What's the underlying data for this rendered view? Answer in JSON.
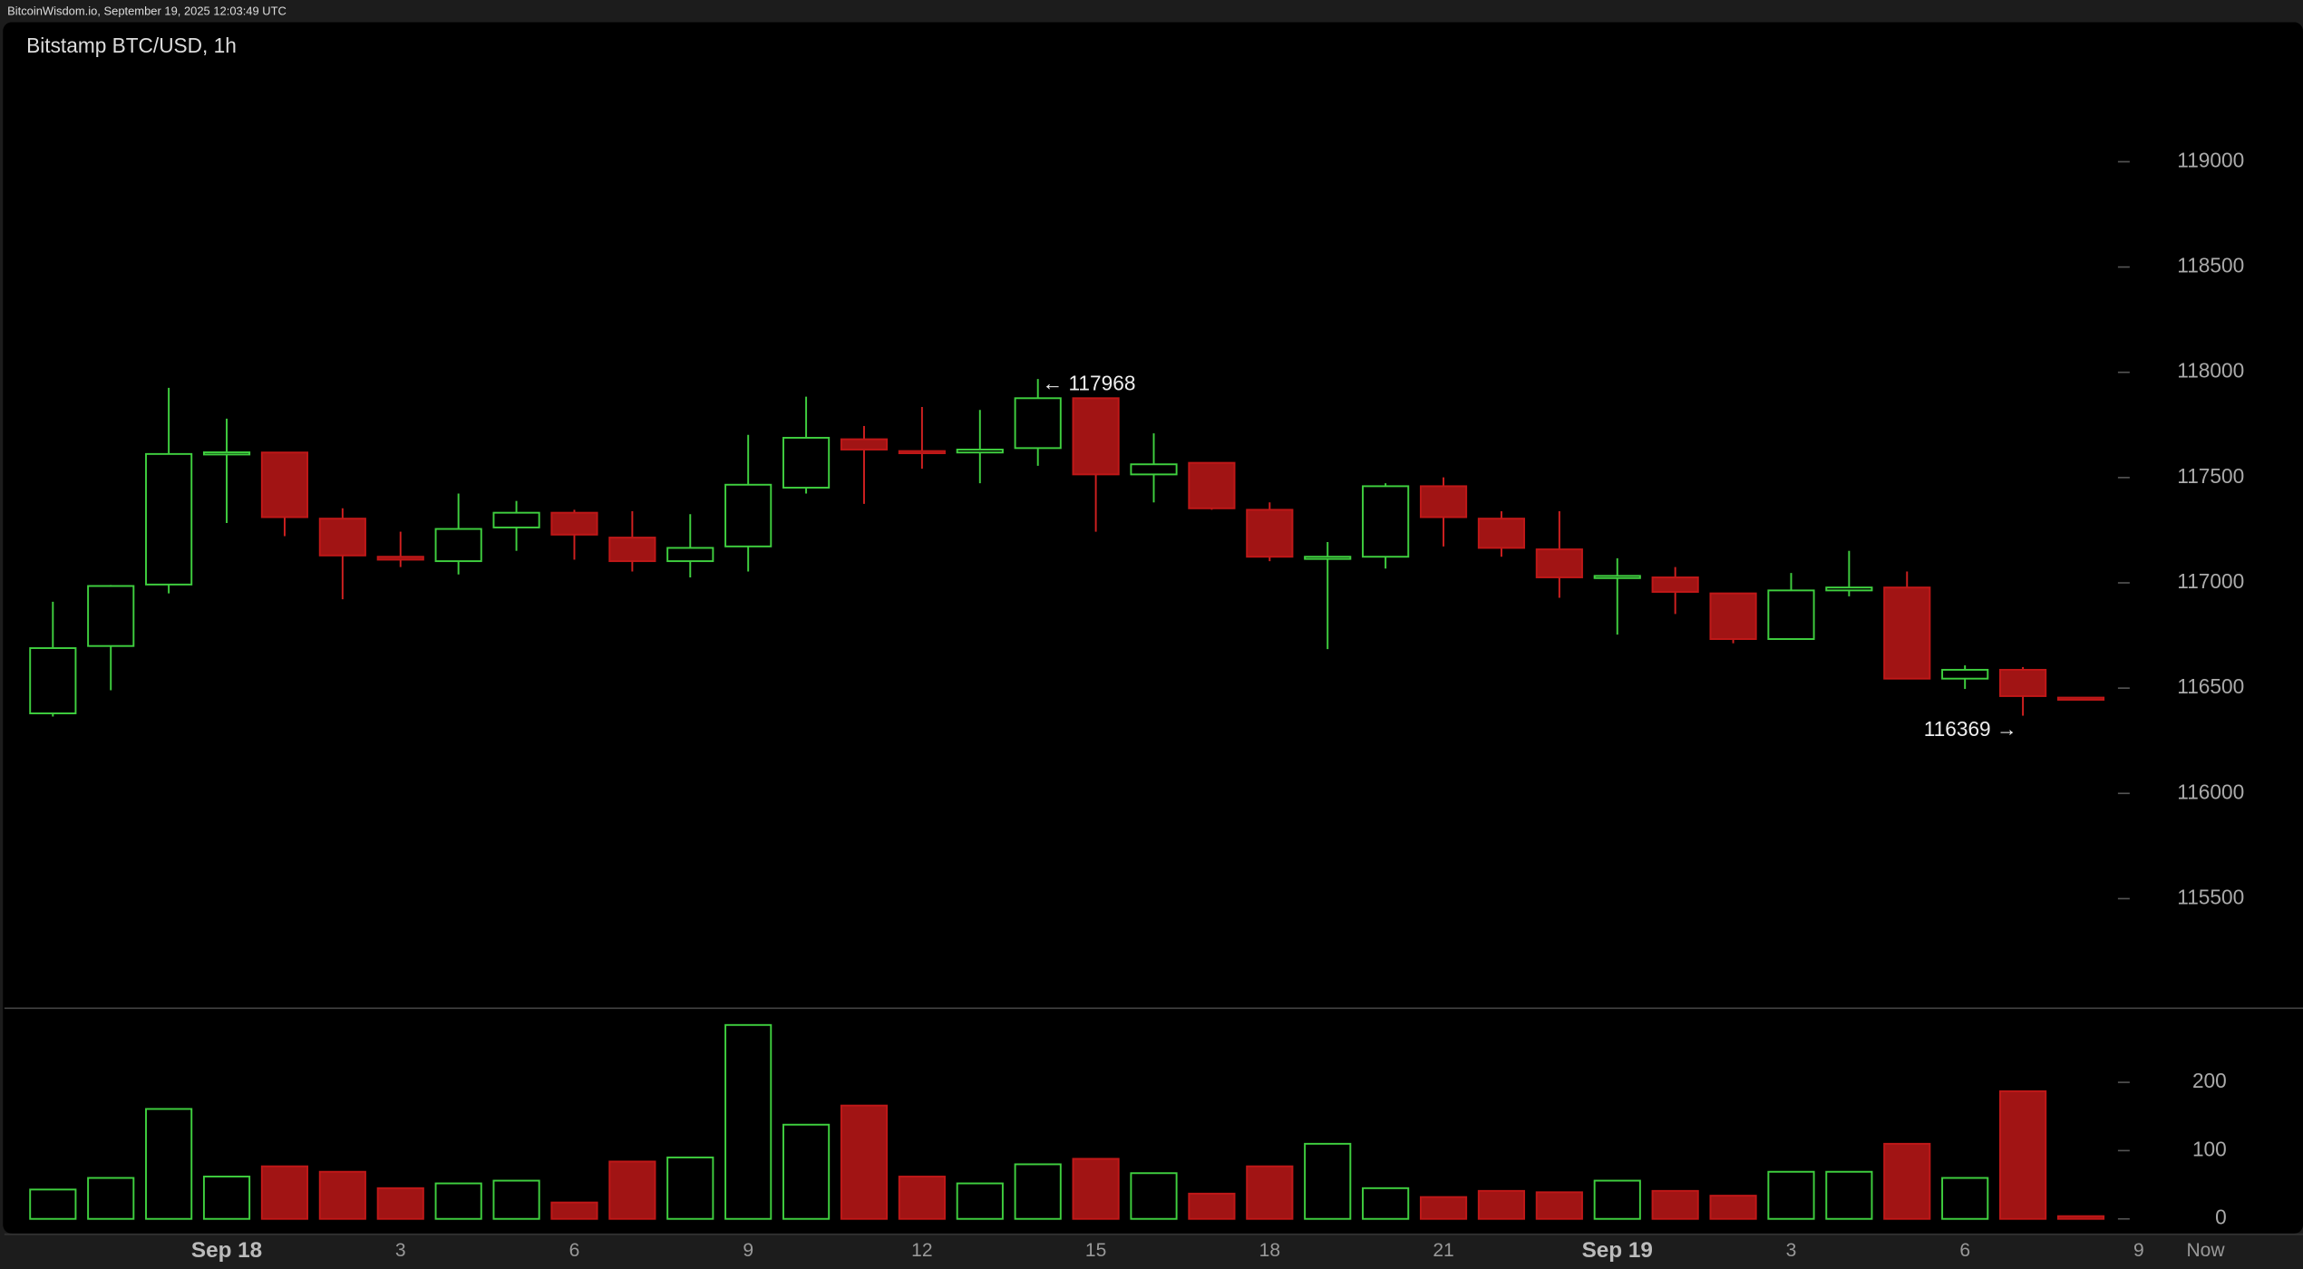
{
  "chart_data": {
    "type": "candlestick",
    "header": "BitcoinWisdom.io, September 19, 2025 12:03:49 UTC",
    "title": "Bitstamp BTC/USD, 1h",
    "categories": [
      null,
      null,
      null,
      "Sep 18",
      null,
      null,
      "3",
      null,
      null,
      "6",
      null,
      null,
      "9",
      null,
      null,
      "12",
      null,
      null,
      "15",
      null,
      null,
      "18",
      null,
      null,
      "21",
      null,
      null,
      "Sep 19",
      null,
      null,
      "3",
      null,
      null,
      "6",
      null,
      null
    ],
    "x_extra_labels": [
      "9",
      "Now"
    ],
    "open": [
      116380,
      116700,
      116992,
      117612,
      117619,
      117305,
      117124,
      117103,
      117263,
      117333,
      117215,
      117103,
      117173,
      117452,
      117682,
      117626,
      117619,
      117640,
      117877,
      117515,
      117570,
      117347,
      117117,
      117124,
      117459,
      117305,
      117159,
      117026,
      117026,
      116950,
      116733,
      116964,
      116978,
      116545,
      116587,
      116455
    ],
    "high": [
      116910,
      116990,
      117926,
      117780,
      117620,
      117354,
      117243,
      117424,
      117389,
      117347,
      117340,
      117326,
      117703,
      117884,
      117745,
      117835,
      117821,
      117968,
      117877,
      117710,
      117570,
      117382,
      117194,
      117473,
      117501,
      117340,
      117340,
      117117,
      117075,
      116950,
      117047,
      117152,
      117054,
      116608,
      116600,
      116455
    ],
    "low": [
      116365,
      116490,
      116950,
      117284,
      117222,
      116922,
      117075,
      117040,
      117152,
      117110,
      117054,
      117026,
      117054,
      117424,
      117375,
      117542,
      117473,
      117556,
      117243,
      117382,
      117347,
      117103,
      116685,
      117068,
      117173,
      117124,
      116929,
      116754,
      116852,
      116713,
      116733,
      116936,
      116545,
      116496,
      116369,
      116441
    ],
    "close": [
      116690,
      116985,
      117612,
      117620,
      117312,
      117130,
      117110,
      117256,
      117333,
      117229,
      117103,
      117166,
      117466,
      117689,
      117633,
      117619,
      117633,
      117877,
      117515,
      117563,
      117354,
      117124,
      117124,
      117459,
      117312,
      117166,
      117026,
      117033,
      116957,
      116733,
      116964,
      116978,
      116545,
      116587,
      116462,
      116448
    ],
    "volume": [
      43,
      60,
      161,
      62,
      77,
      69,
      45,
      52,
      56,
      24,
      84,
      90,
      284,
      138,
      166,
      62,
      52,
      80,
      88,
      67,
      37,
      77,
      110,
      45,
      32,
      41,
      39,
      56,
      41,
      34,
      69,
      69,
      110,
      60,
      187,
      4
    ],
    "up_color": "#3fcf3f",
    "down_color": "#a11414",
    "ylim": [
      115000,
      119600
    ],
    "yticks": [
      115500,
      116000,
      116500,
      117000,
      117500,
      118000,
      118500,
      119000
    ],
    "volume_ylim": [
      0,
      300
    ],
    "volume_yticks": [
      0,
      100,
      200
    ],
    "annotations": [
      {
        "label": "← 117968",
        "value": 117968
      },
      {
        "label": "116369 →",
        "value": 116369
      }
    ]
  }
}
